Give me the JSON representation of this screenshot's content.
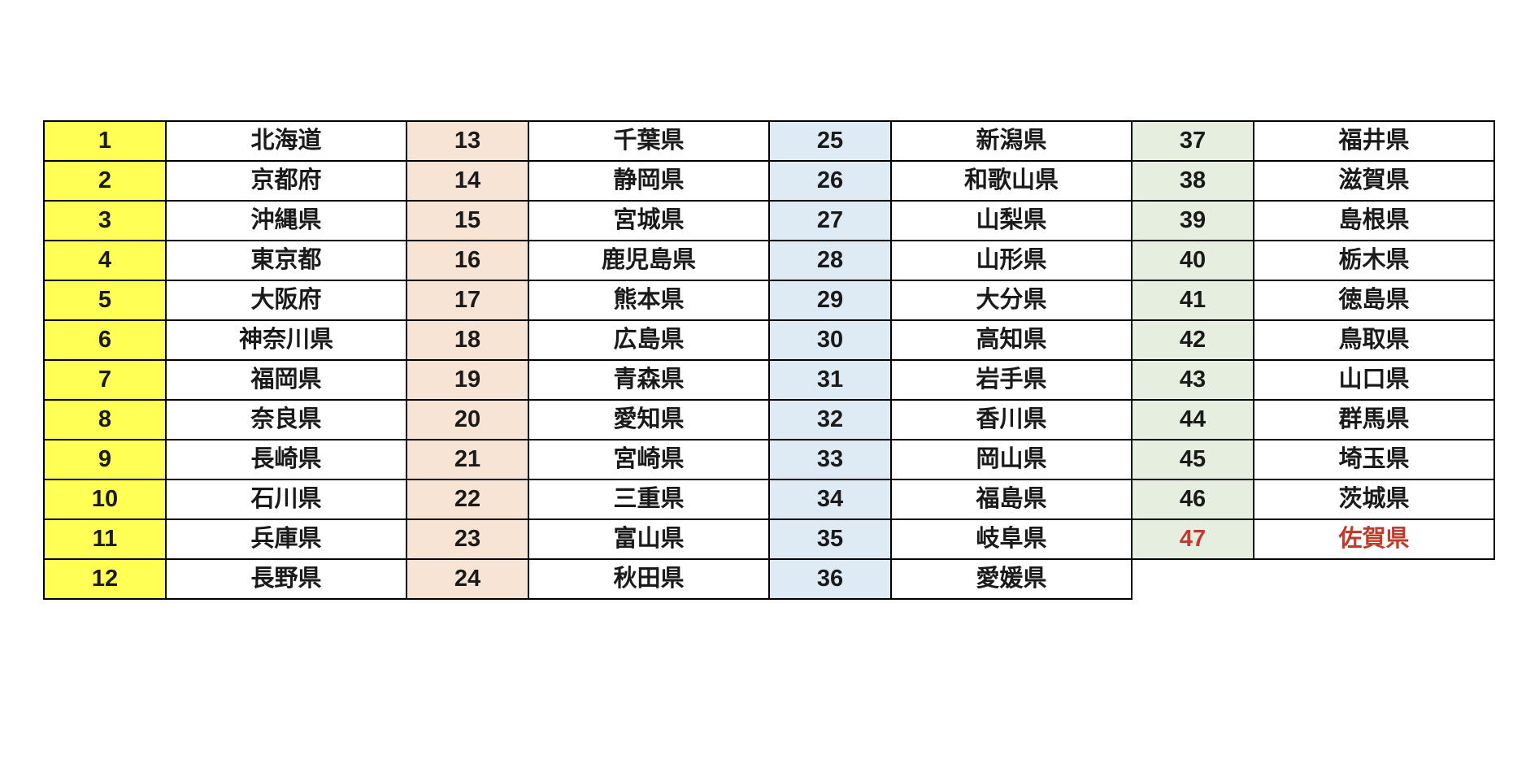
{
  "chart_data": {
    "type": "table",
    "title": "",
    "description": "Ranking table of all 47 Japanese prefectures arranged in four column groups of rank/prefecture pairs; rank 47 (Saga) is emphasized in red",
    "columns_per_group": [
      "rank",
      "prefecture"
    ],
    "colors": {
      "background": "#ffffff",
      "border": "#000000",
      "text": "#1a1a1a",
      "highlight_text": "#C13B2D",
      "group_number_backgrounds": [
        "#FFFF56",
        "#F8E4D4",
        "#DEEAF4",
        "#E5EEDF"
      ]
    },
    "groups": [
      {
        "name": "ranks-1-12",
        "number_bg": "#FFFF56",
        "rows": [
          {
            "rank": "1",
            "prefecture": "北海道"
          },
          {
            "rank": "2",
            "prefecture": "京都府"
          },
          {
            "rank": "3",
            "prefecture": "沖縄県"
          },
          {
            "rank": "4",
            "prefecture": "東京都"
          },
          {
            "rank": "5",
            "prefecture": "大阪府"
          },
          {
            "rank": "6",
            "prefecture": "神奈川県"
          },
          {
            "rank": "7",
            "prefecture": "福岡県"
          },
          {
            "rank": "8",
            "prefecture": "奈良県"
          },
          {
            "rank": "9",
            "prefecture": "長崎県"
          },
          {
            "rank": "10",
            "prefecture": "石川県"
          },
          {
            "rank": "11",
            "prefecture": "兵庫県"
          },
          {
            "rank": "12",
            "prefecture": "長野県"
          }
        ]
      },
      {
        "name": "ranks-13-24",
        "number_bg": "#F8E4D4",
        "rows": [
          {
            "rank": "13",
            "prefecture": "千葉県"
          },
          {
            "rank": "14",
            "prefecture": "静岡県"
          },
          {
            "rank": "15",
            "prefecture": "宮城県"
          },
          {
            "rank": "16",
            "prefecture": "鹿児島県"
          },
          {
            "rank": "17",
            "prefecture": "熊本県"
          },
          {
            "rank": "18",
            "prefecture": "広島県"
          },
          {
            "rank": "19",
            "prefecture": "青森県"
          },
          {
            "rank": "20",
            "prefecture": "愛知県"
          },
          {
            "rank": "21",
            "prefecture": "宮崎県"
          },
          {
            "rank": "22",
            "prefecture": "三重県"
          },
          {
            "rank": "23",
            "prefecture": "富山県"
          },
          {
            "rank": "24",
            "prefecture": "秋田県"
          }
        ]
      },
      {
        "name": "ranks-25-36",
        "number_bg": "#DEEAF4",
        "rows": [
          {
            "rank": "25",
            "prefecture": "新潟県"
          },
          {
            "rank": "26",
            "prefecture": "和歌山県"
          },
          {
            "rank": "27",
            "prefecture": "山梨県"
          },
          {
            "rank": "28",
            "prefecture": "山形県"
          },
          {
            "rank": "29",
            "prefecture": "大分県"
          },
          {
            "rank": "30",
            "prefecture": "高知県"
          },
          {
            "rank": "31",
            "prefecture": "岩手県"
          },
          {
            "rank": "32",
            "prefecture": "香川県"
          },
          {
            "rank": "33",
            "prefecture": "岡山県"
          },
          {
            "rank": "34",
            "prefecture": "福島県"
          },
          {
            "rank": "35",
            "prefecture": "岐阜県"
          },
          {
            "rank": "36",
            "prefecture": "愛媛県"
          }
        ]
      },
      {
        "name": "ranks-37-47",
        "number_bg": "#E5EEDF",
        "rows": [
          {
            "rank": "37",
            "prefecture": "福井県"
          },
          {
            "rank": "38",
            "prefecture": "滋賀県"
          },
          {
            "rank": "39",
            "prefecture": "島根県"
          },
          {
            "rank": "40",
            "prefecture": "栃木県"
          },
          {
            "rank": "41",
            "prefecture": "徳島県"
          },
          {
            "rank": "42",
            "prefecture": "鳥取県"
          },
          {
            "rank": "43",
            "prefecture": "山口県"
          },
          {
            "rank": "44",
            "prefecture": "群馬県"
          },
          {
            "rank": "45",
            "prefecture": "埼玉県"
          },
          {
            "rank": "46",
            "prefecture": "茨城県"
          },
          {
            "rank": "47",
            "prefecture": "佐賀県",
            "highlight": true
          }
        ]
      }
    ]
  }
}
